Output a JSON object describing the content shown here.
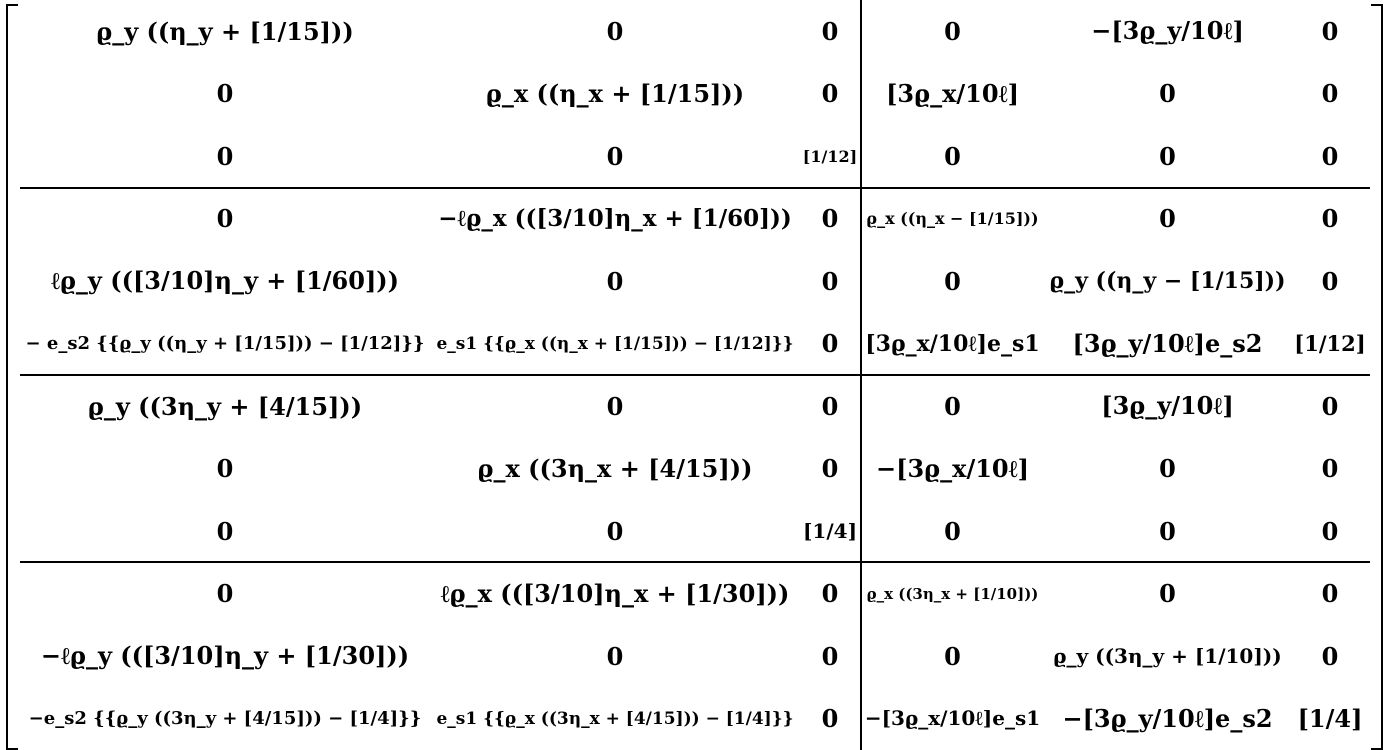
{
  "matrix": {
    "rows": [
      [
        "ϱ_y ((η_y + [1/15]))",
        "0",
        "0",
        "0",
        "−[3ϱ_y/10ℓ]",
        "0"
      ],
      [
        "0",
        "ϱ_x ((η_x + [1/15]))",
        "0",
        "[3ϱ_x/10ℓ]",
        "0",
        "0"
      ],
      [
        "0",
        "0",
        "[1/12]",
        "0",
        "0",
        "0"
      ],
      [
        "0",
        "−ℓϱ_x (([3/10]η_x + [1/60]))",
        "0",
        "ϱ_x ((η_x − [1/15]))",
        "0",
        "0"
      ],
      [
        "ℓϱ_y (([3/10]η_y + [1/60]))",
        "0",
        "0",
        "0",
        "ϱ_y ((η_y − [1/15]))",
        "0"
      ],
      [
        "− e_s2 {{ϱ_y ((η_y + [1/15])) − [1/12]}}",
        "e_s1 {{ϱ_x ((η_x + [1/15])) − [1/12]}}",
        "0",
        "[3ϱ_x/10ℓ]e_s1",
        "[3ϱ_y/10ℓ]e_s2",
        "[1/12]"
      ],
      [
        "ϱ_y ((3η_y + [4/15]))",
        "0",
        "0",
        "0",
        "[3ϱ_y/10ℓ]",
        "0"
      ],
      [
        "0",
        "ϱ_x ((3η_x + [4/15]))",
        "0",
        "−[3ϱ_x/10ℓ]",
        "0",
        "0"
      ],
      [
        "0",
        "0",
        "[1/4]",
        "0",
        "0",
        "0"
      ],
      [
        "0",
        "ℓϱ_x (([3/10]η_x + [1/30]))",
        "0",
        "ϱ_x ((3η_x + [1/10]))",
        "0",
        "0"
      ],
      [
        "−ℓϱ_y (([3/10]η_y + [1/30]))",
        "0",
        "0",
        "0",
        "ϱ_y ((3η_y + [1/10]))",
        "0"
      ],
      [
        "−e_s2 {{ϱ_y ((3η_y + [4/15])) − [1/4]}}",
        "e_s1 {{ϱ_x ((3η_x + [4/15])) − [1/4]}}",
        "0",
        "−[3ϱ_x/10ℓ]e_s1",
        "−[3ϱ_y/10ℓ]e_s2",
        "[1/4]"
      ]
    ]
  }
}
